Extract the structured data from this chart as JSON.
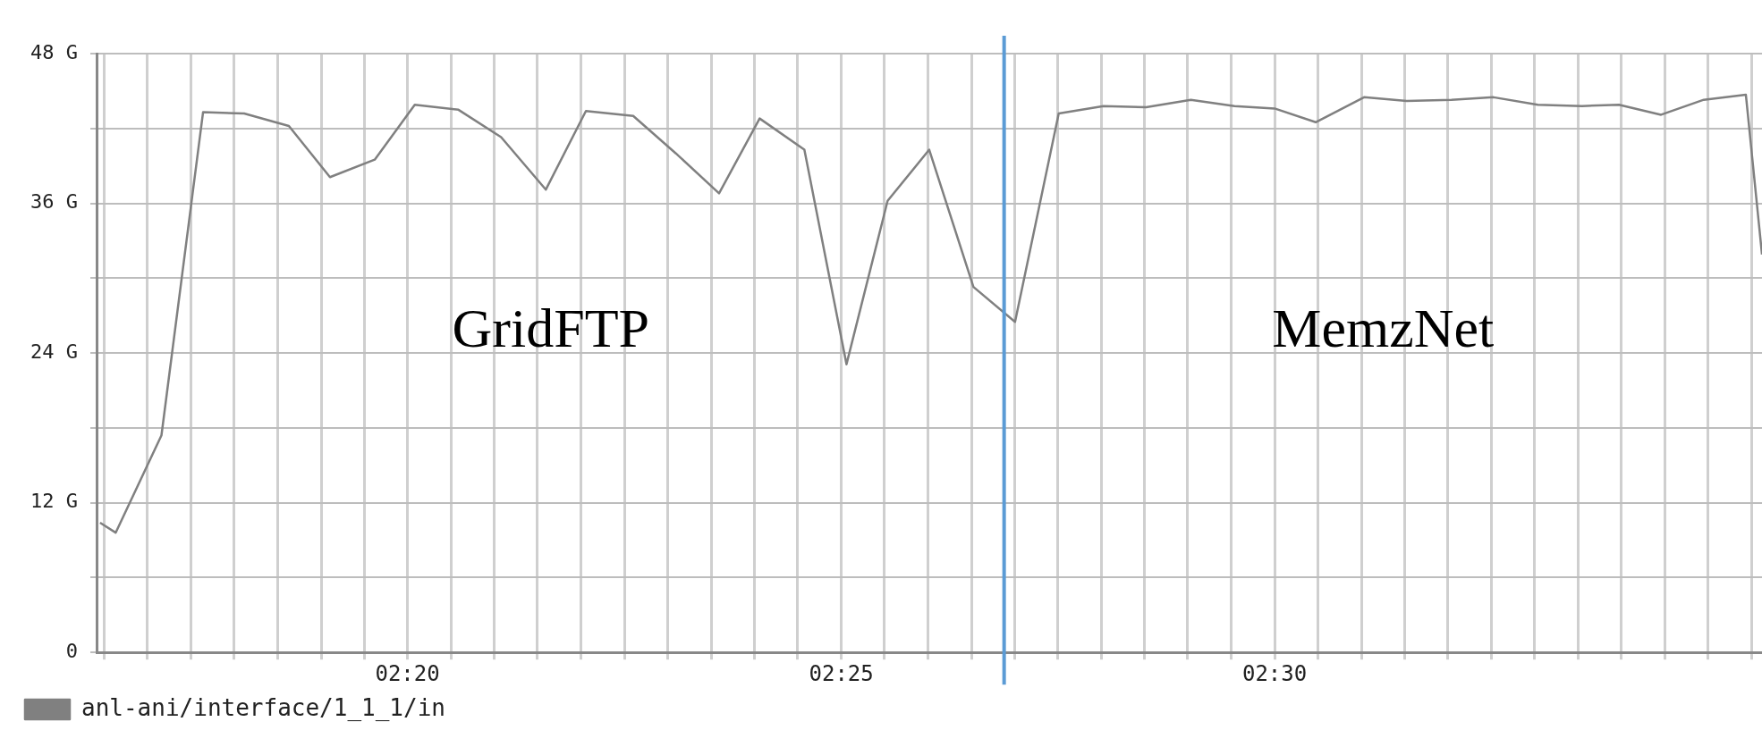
{
  "chart_data": {
    "type": "line",
    "xlim": [
      2.2737,
      2.5937
    ],
    "xticks": [
      {
        "value": 2.275,
        "label": null
      },
      {
        "value": 2.2833,
        "label": null
      },
      {
        "value": 2.2917,
        "label": null
      },
      {
        "value": 2.3,
        "label": null
      },
      {
        "value": 2.3083,
        "label": null
      },
      {
        "value": 2.3167,
        "label": null
      },
      {
        "value": 2.325,
        "label": null
      },
      {
        "value": 2.3333,
        "label": "02:20"
      },
      {
        "value": 2.3417,
        "label": null
      },
      {
        "value": 2.35,
        "label": null
      },
      {
        "value": 2.3583,
        "label": null
      },
      {
        "value": 2.3667,
        "label": null
      },
      {
        "value": 2.375,
        "label": null
      },
      {
        "value": 2.3833,
        "label": null
      },
      {
        "value": 2.3917,
        "label": null
      },
      {
        "value": 2.4,
        "label": null
      },
      {
        "value": 2.4083,
        "label": null
      },
      {
        "value": 2.4167,
        "label": "02:25"
      },
      {
        "value": 2.425,
        "label": null
      },
      {
        "value": 2.4333,
        "label": null
      },
      {
        "value": 2.4417,
        "label": null
      },
      {
        "value": 2.45,
        "label": null
      },
      {
        "value": 2.4583,
        "label": null
      },
      {
        "value": 2.4667,
        "label": null
      },
      {
        "value": 2.475,
        "label": null
      },
      {
        "value": 2.4833,
        "label": null
      },
      {
        "value": 2.4917,
        "label": null
      },
      {
        "value": 2.5,
        "label": "02:30"
      },
      {
        "value": 2.5083,
        "label": null
      },
      {
        "value": 2.5167,
        "label": null
      },
      {
        "value": 2.525,
        "label": null
      },
      {
        "value": 2.5333,
        "label": null
      },
      {
        "value": 2.5417,
        "label": null
      },
      {
        "value": 2.55,
        "label": null
      },
      {
        "value": 2.5583,
        "label": null
      },
      {
        "value": 2.5667,
        "label": null
      },
      {
        "value": 2.575,
        "label": null
      },
      {
        "value": 2.5833,
        "label": null
      },
      {
        "value": 2.5917,
        "label": null
      }
    ],
    "ylim": [
      0,
      48
    ],
    "yticks": [
      0,
      {
        "value": 6,
        "label": null
      },
      {
        "value": 12,
        "label": "12 G"
      },
      {
        "value": 18,
        "label": null
      },
      {
        "value": 24,
        "label": "24 G"
      },
      {
        "value": 30,
        "label": null
      },
      {
        "value": 36,
        "label": "36 G"
      },
      {
        "value": 42,
        "label": null
      },
      {
        "value": 48,
        "label": "48 G"
      }
    ],
    "grid": true,
    "legend": "bottom left",
    "marker": "none",
    "line_style": "solid",
    "x": [
      2.2742,
      2.2772,
      2.286,
      2.294,
      2.3019,
      2.3105,
      2.3184,
      2.327,
      2.3347,
      2.3431,
      2.3513,
      2.3599,
      2.3676,
      2.3767,
      2.3849,
      2.3932,
      2.401,
      2.4096,
      2.4177,
      2.4256,
      2.4336,
      2.4421,
      2.4501,
      2.4585,
      2.4671,
      2.4753,
      2.4839,
      2.4923,
      2.5,
      2.5079,
      2.5172,
      2.5254,
      2.534,
      2.5421,
      2.5506,
      2.5591,
      2.5662,
      2.5743,
      2.5825,
      2.5906,
      2.5937
    ],
    "series": [
      {
        "name": "anl-ani/interface/1_1_1/in",
        "color": "#808080",
        "values": [
          10.4,
          9.6,
          17.4,
          43.3,
          43.2,
          42.2,
          38.1,
          39.5,
          43.9,
          43.5,
          41.3,
          37.1,
          43.4,
          43.0,
          40.0,
          36.8,
          42.8,
          40.3,
          23.1,
          36.2,
          40.3,
          29.3,
          26.5,
          43.2,
          43.8,
          43.7,
          44.3,
          43.8,
          43.6,
          42.5,
          44.5,
          44.2,
          44.3,
          44.5,
          43.9,
          43.8,
          43.9,
          43.1,
          44.3,
          44.7,
          31.9
        ]
      }
    ],
    "ref_lines": [
      {
        "axis": "x",
        "value": 2.448,
        "color": "#5b9bd5"
      }
    ],
    "annotations": [
      "GridFTP",
      "MemzNet"
    ]
  }
}
